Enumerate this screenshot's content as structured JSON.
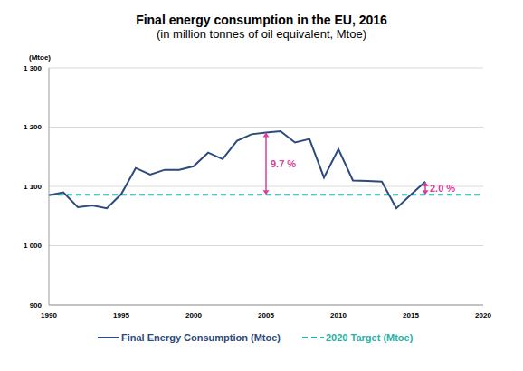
{
  "chart_data": {
    "type": "line",
    "title": "Final energy consumption in the EU, 2016",
    "subtitle": "(in million tonnes of oil equivalent, Mtoe)",
    "y_label": "(Mtoe)",
    "x": [
      1990,
      1991,
      1992,
      1993,
      1994,
      1995,
      1996,
      1997,
      1998,
      1999,
      2000,
      2001,
      2002,
      2003,
      2004,
      2005,
      2006,
      2007,
      2008,
      2009,
      2010,
      2011,
      2012,
      2013,
      2014,
      2015,
      2016
    ],
    "series": [
      {
        "name": "Final Energy Consumption (Mtoe)",
        "color": "#2c4a7e",
        "values": [
          1085,
          1090,
          1065,
          1068,
          1063,
          1087,
          1131,
          1120,
          1128,
          1128,
          1134,
          1157,
          1146,
          1177,
          1188,
          1191,
          1193,
          1174,
          1180,
          1115,
          1163,
          1110,
          1109,
          1108,
          1063,
          1086,
          1108
        ]
      }
    ],
    "target": {
      "name": "2020 Target (Mtoe)",
      "value": 1086,
      "color": "#2ab0a5",
      "line_style": "dashed"
    },
    "annotations": [
      {
        "text": "9.7 %",
        "x": 2005,
        "color": "#d63f9c"
      },
      {
        "text": "2.0 %",
        "x": 2016,
        "color": "#d63f9c"
      }
    ],
    "xlim": [
      1990,
      2020
    ],
    "xticks": [
      1990,
      1995,
      2000,
      2005,
      2010,
      2015,
      2020
    ],
    "ylim": [
      900,
      1300
    ],
    "yticks": [
      900,
      {
        "value": 1000,
        "label": "1 000"
      },
      {
        "value": 1100,
        "label": "1 100"
      },
      {
        "value": 1200,
        "label": "1 200"
      },
      {
        "value": 1300,
        "label": "1 300"
      }
    ],
    "grid": true,
    "legend": "bottom"
  }
}
